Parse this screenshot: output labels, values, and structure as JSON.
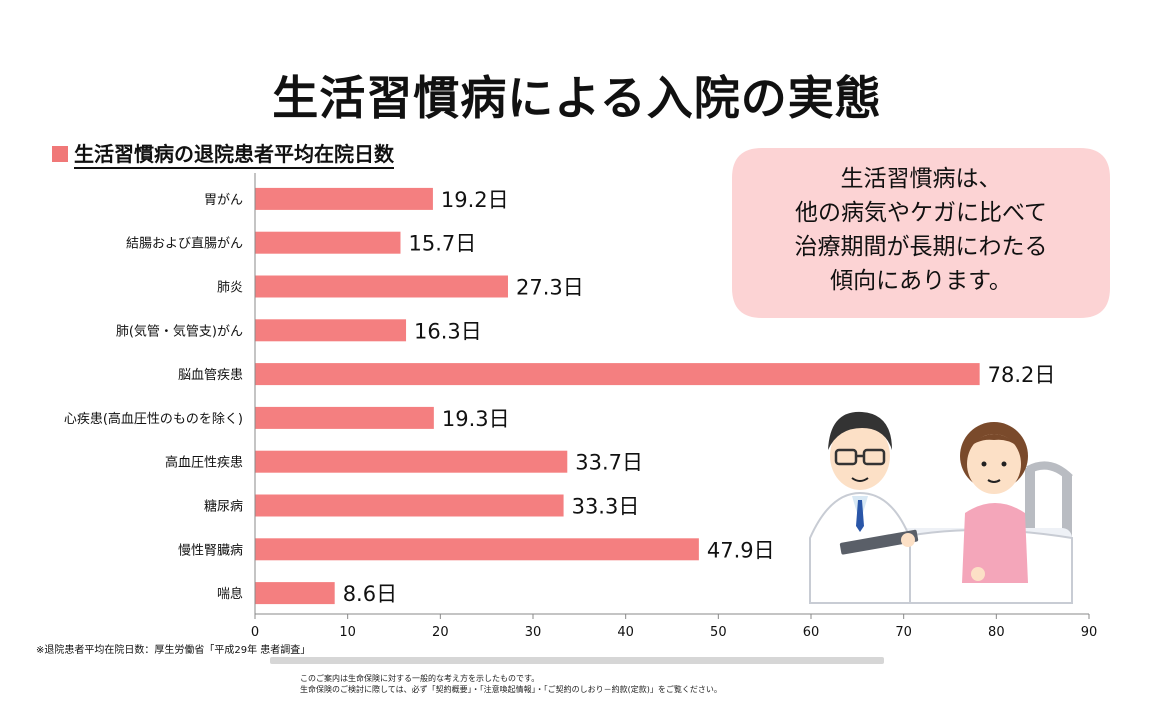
{
  "header": {
    "title": "生活習慣病による入院の実態",
    "subtitle": "生活習慣病の退院患者平均在院日数"
  },
  "callout": {
    "lines": [
      "生活習慣病は、",
      "他の病気やケガに比べて",
      "治療期間が長期にわたる",
      "傾向にあります。"
    ]
  },
  "footer": {
    "source": "※退院患者平均在院日数：厚生労働省「平成29年 患者調査」",
    "disclaimer_1": "このご案内は生命保険に対する一般的な考え方を示したものです。",
    "disclaimer_2": "生命保険のご検討に際しては、必ず「契約概要」・「注意喚起情報」・「ご契約のしおり－約款(定款)」をご覧ください。"
  },
  "colors": {
    "bar": "#f47f80",
    "accent": "#f07878",
    "callout_bg": "#fcd3d4"
  },
  "chart_data": {
    "type": "bar",
    "orientation": "horizontal",
    "categories": [
      "胃がん",
      "結腸および直腸がん",
      "肺炎",
      "肺(気管・気管支)がん",
      "脳血管疾患",
      "心疾患(高血圧性のものを除く)",
      "高血圧性疾患",
      "糖尿病",
      "慢性腎臓病",
      "喘息"
    ],
    "values": [
      19.2,
      15.7,
      27.3,
      16.3,
      78.2,
      19.3,
      33.7,
      33.3,
      47.9,
      8.6
    ],
    "value_labels": [
      "19.2日",
      "15.7日",
      "27.3日",
      "16.3日",
      "78.2日",
      "19.3日",
      "33.7日",
      "33.3日",
      "47.9日",
      "8.6日"
    ],
    "xlim": [
      0,
      90
    ],
    "xticks": [
      0,
      10,
      20,
      30,
      40,
      50,
      60,
      70,
      80,
      90
    ],
    "grid": false,
    "legend": "none"
  }
}
